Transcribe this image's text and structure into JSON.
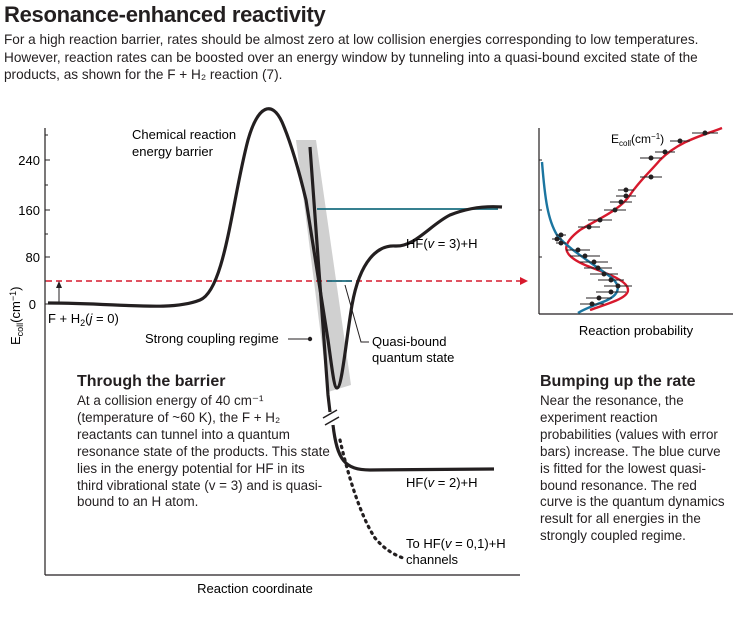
{
  "header": {
    "title": "Resonance-enhanced reactivity",
    "intro": "For a high reaction barrier, rates should be almost zero at low collision energies corresponding to low temperatures. However, reaction rates can be boosted over an energy window by tunneling into a quasi-bound excited state of the products, as shown for the F + H₂ reaction (7)."
  },
  "left_diagram": {
    "y_axis_label": "Eₐₒₗₗ(cm⁻¹)",
    "y_axis_label_parts": {
      "base": "E",
      "sub": "coll",
      "unit": "(cm",
      "sup": "−1",
      "close": ")"
    },
    "y_ticks": [
      "240",
      "160",
      "80",
      "0"
    ],
    "x_axis_label": "Reaction coordinate",
    "labels": {
      "barrier": [
        "Chemical reaction",
        "energy barrier"
      ],
      "reactants": "F + H₂(j = 0)",
      "hf3": "HF(v = 3)+H",
      "hf2": "HF(v = 2)+H",
      "hf01": [
        "To HF(v = 0,1)+H",
        "channels"
      ],
      "coupling": "Strong coupling regime",
      "quasi": [
        "Quasi-bound",
        "quantum state"
      ]
    },
    "collision_energy": 40
  },
  "right_diagram": {
    "x_axis_label": "Reaction probability",
    "y_label_parts": {
      "base": "E",
      "sub": "coll",
      "unit": "(cm",
      "sup": "−1",
      "close": ")"
    },
    "series_colors": {
      "fit": "#1b75a0",
      "theory": "#d7192d"
    }
  },
  "left_text": {
    "heading": "Through the barrier",
    "body": "At a collision energy of 40 cm⁻¹ (temperature of ~60 K), the F + H₂ reactants can tunnel into a quantum resonance state of the products. This state lies in the energy potential for HF in its third vibrational state (v = 3) and is quasi-bound to an H atom."
  },
  "right_text": {
    "heading": "Bumping up the rate",
    "body": "Near the resonance, the experiment reaction probabilities (values with error bars) increase. The blue curve is fitted for the lowest quasi-bound resonance. The red curve is the quantum dynamics result for all energies in the strongly coupled regime."
  },
  "colors": {
    "teal": "#1a6e80",
    "red_dashed": "#d7192d",
    "gray_band": "#d0d0d0"
  }
}
